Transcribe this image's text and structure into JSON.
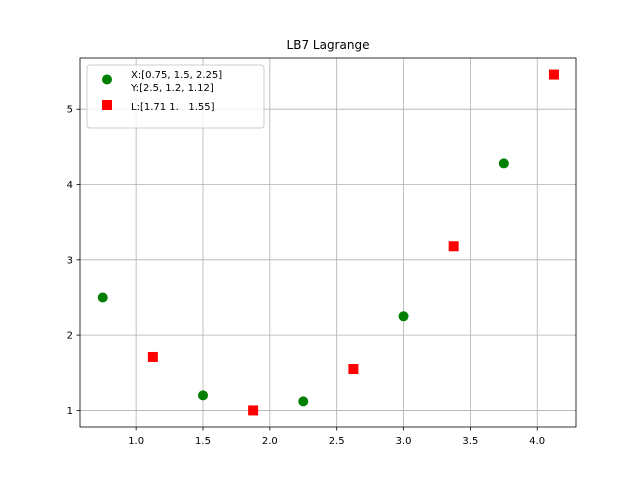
{
  "chart_data": {
    "type": "scatter",
    "title": "LB7 Lagrange",
    "xlabel": "",
    "ylabel": "",
    "xlim": [
      0.58,
      4.29
    ],
    "ylim": [
      0.78,
      5.68
    ],
    "grid": true,
    "legend_position": "top-left",
    "x_ticks": [
      "1.0",
      "1.5",
      "2.0",
      "2.5",
      "3.0",
      "3.5",
      "4.0"
    ],
    "y_ticks": [
      "1",
      "2",
      "3",
      "4",
      "5"
    ],
    "series": [
      {
        "name": "X:[0.75, 1.5, 2.25]\nY:[2.5, 1.2, 1.12]",
        "legend_lines": [
          "X:[0.75, 1.5, 2.25]",
          "Y:[2.5, 1.2, 1.12]"
        ],
        "marker": "circle",
        "color": "#008000",
        "x": [
          0.75,
          1.5,
          2.25,
          3.0,
          3.75
        ],
        "y": [
          2.5,
          1.2,
          1.12,
          2.25,
          4.28
        ]
      },
      {
        "name": "L:[1.71 1.   1.55]",
        "legend_lines": [
          "L:[1.71 1.   1.55]"
        ],
        "marker": "square",
        "color": "#ff0000",
        "x": [
          1.125,
          1.875,
          2.625,
          3.375,
          4.125
        ],
        "y": [
          1.71,
          1.0,
          1.55,
          3.18,
          5.46
        ]
      }
    ]
  }
}
